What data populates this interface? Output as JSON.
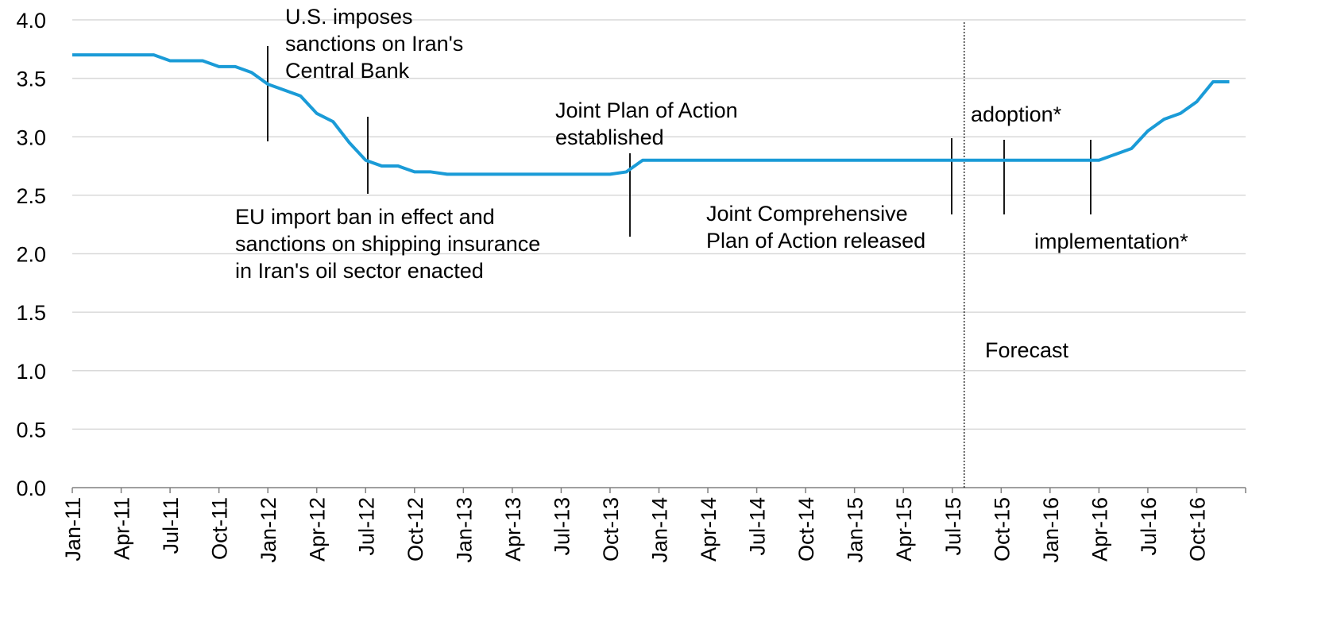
{
  "chart_data": {
    "type": "line",
    "title": "",
    "xlabel": "",
    "ylabel": "",
    "ylim": [
      0,
      4
    ],
    "yticks": [
      "0.0",
      "0.5",
      "1.0",
      "1.5",
      "2.0",
      "2.5",
      "3.0",
      "3.5",
      "4.0"
    ],
    "xticks": [
      "Jan-11",
      "Apr-11",
      "Jul-11",
      "Oct-11",
      "Jan-12",
      "Apr-12",
      "Jul-12",
      "Oct-12",
      "Jan-13",
      "Apr-13",
      "Jul-13",
      "Oct-13",
      "Jan-14",
      "Apr-14",
      "Jul-14",
      "Oct-14",
      "Jan-15",
      "Apr-15",
      "Jul-15",
      "Oct-15",
      "Jan-16",
      "Apr-16",
      "Jul-16",
      "Oct-16"
    ],
    "grid": true,
    "legend": "none",
    "line_color": "#1a9bd7",
    "series": [
      {
        "x": [
          "Jan-11",
          "Feb-11",
          "Mar-11",
          "Apr-11",
          "May-11",
          "Jun-11",
          "Jul-11",
          "Aug-11",
          "Sep-11",
          "Oct-11",
          "Nov-11",
          "Dec-11",
          "Jan-12",
          "Feb-12",
          "Mar-12",
          "Apr-12",
          "May-12",
          "Jun-12",
          "Jul-12",
          "Aug-12",
          "Sep-12",
          "Oct-12",
          "Nov-12",
          "Dec-12",
          "Jan-13",
          "Feb-13",
          "Mar-13",
          "Apr-13",
          "May-13",
          "Jun-13",
          "Jul-13",
          "Aug-13",
          "Sep-13",
          "Oct-13",
          "Nov-13",
          "Dec-13",
          "Jan-14",
          "Feb-14",
          "Mar-14",
          "Apr-14",
          "May-14",
          "Jun-14",
          "Jul-14",
          "Aug-14",
          "Sep-14",
          "Oct-14",
          "Nov-14",
          "Dec-14",
          "Jan-15",
          "Feb-15",
          "Mar-15",
          "Apr-15",
          "May-15",
          "Jun-15",
          "Jul-15",
          "Aug-15",
          "Sep-15",
          "Oct-15",
          "Nov-15",
          "Dec-15",
          "Jan-16",
          "Feb-16",
          "Mar-16",
          "Apr-16",
          "May-16",
          "Jun-16",
          "Jul-16",
          "Aug-16",
          "Sep-16",
          "Oct-16",
          "Nov-16",
          "Dec-16"
        ],
        "values": [
          3.7,
          3.7,
          3.7,
          3.7,
          3.7,
          3.7,
          3.65,
          3.65,
          3.65,
          3.6,
          3.6,
          3.55,
          3.45,
          3.4,
          3.35,
          3.2,
          3.13,
          2.95,
          2.8,
          2.75,
          2.75,
          2.7,
          2.7,
          2.68,
          2.68,
          2.68,
          2.68,
          2.68,
          2.68,
          2.68,
          2.68,
          2.68,
          2.68,
          2.68,
          2.7,
          2.8,
          2.8,
          2.8,
          2.8,
          2.8,
          2.8,
          2.8,
          2.8,
          2.8,
          2.8,
          2.8,
          2.8,
          2.8,
          2.8,
          2.8,
          2.8,
          2.8,
          2.8,
          2.8,
          2.8,
          2.8,
          2.8,
          2.8,
          2.8,
          2.8,
          2.8,
          2.8,
          2.8,
          2.8,
          2.85,
          2.9,
          3.05,
          3.15,
          3.2,
          3.3,
          3.47,
          3.47
        ]
      }
    ],
    "forecast_start": "Jul-15",
    "forecast_label": "Forecast",
    "annotations": [
      {
        "id": "us-sanctions",
        "month": "Jan-12",
        "lines": [
          "U.S. imposes",
          "sanctions on Iran's",
          "Central Bank"
        ]
      },
      {
        "id": "eu-ban",
        "month": "Jul-12",
        "lines": [
          "EU import ban in effect and",
          "sanctions on shipping insurance",
          "in Iran's oil sector enacted"
        ]
      },
      {
        "id": "jpoa",
        "month": "Nov-13",
        "lines": [
          "Joint Plan of Action",
          "established"
        ]
      },
      {
        "id": "jcpoa",
        "month": "Jul-15",
        "lines": [
          "Joint Comprehensive",
          "Plan of Action released"
        ]
      },
      {
        "id": "adoption",
        "month": "Oct-15",
        "lines": [
          "adoption*"
        ]
      },
      {
        "id": "implementation",
        "month": "Mar-16",
        "lines": [
          "implementation*"
        ]
      }
    ]
  }
}
